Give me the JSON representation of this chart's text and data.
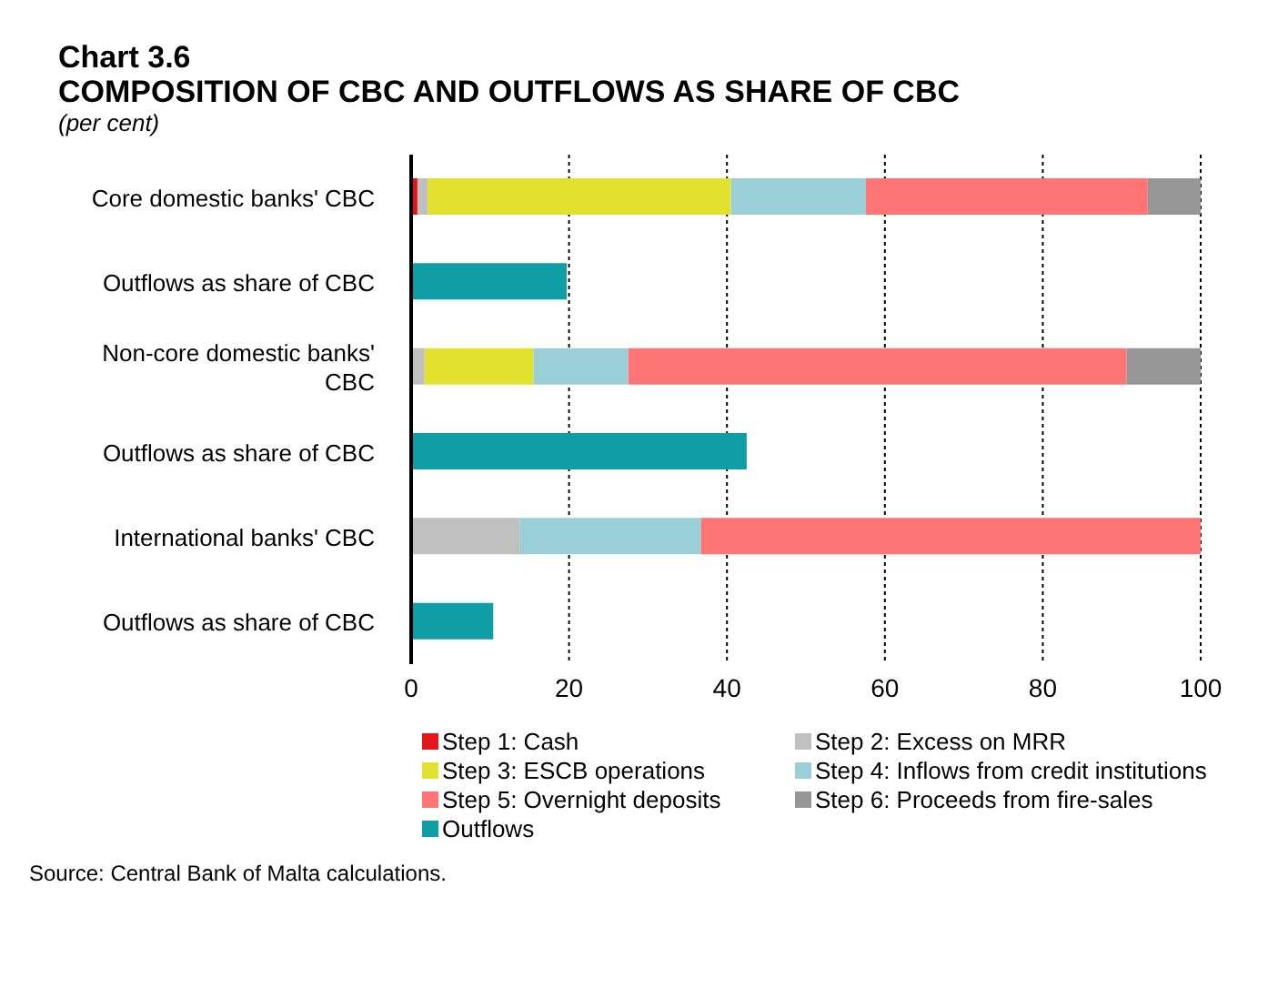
{
  "chart_data": {
    "type": "bar",
    "orientation": "horizontal",
    "stacked": true,
    "title": "Chart 3.6\nCOMPOSITION OF CBC AND OUTFLOWS AS SHARE OF CBC",
    "subtitle": "(per cent)",
    "categories": [
      "Core domestic banks' CBC",
      "Outflows as share of CBC",
      "Non-core domestic banks' CBC",
      "Outflows as share of CBC",
      "International banks' CBC",
      "Outflows as share of CBC"
    ],
    "series": [
      {
        "name": "Step 1: Cash",
        "color": "#e3161c",
        "values": [
          0.8,
          null,
          null,
          null,
          null,
          null
        ]
      },
      {
        "name": "Step 2: Excess on MRR",
        "color": "#c0c0c0",
        "values": [
          1.3,
          null,
          1.7,
          null,
          13.8,
          null
        ]
      },
      {
        "name": "Step 3: ESCB operations",
        "color": "#e2e22e",
        "values": [
          38.4,
          null,
          13.8,
          null,
          null,
          null
        ]
      },
      {
        "name": "Step 4: Inflows from credit institutions",
        "color": "#9bcfd8",
        "values": [
          17.1,
          null,
          12.0,
          null,
          22.9,
          null
        ]
      },
      {
        "name": "Step 5: Overnight deposits",
        "color": "#ff7575",
        "values": [
          35.7,
          null,
          63.1,
          null,
          63.3,
          null
        ]
      },
      {
        "name": "Step 6: Proceeds from fire-sales",
        "color": "#969696",
        "values": [
          6.7,
          null,
          9.4,
          null,
          null,
          null
        ]
      },
      {
        "name": "Outflows",
        "color": "#0f9ea5",
        "values": [
          null,
          19.7,
          null,
          42.5,
          null,
          10.4
        ]
      }
    ],
    "xlim": [
      0,
      100
    ],
    "xticks": [
      0,
      20,
      40,
      60,
      80,
      100
    ],
    "grid": "x",
    "legend": "bottom",
    "annotations": [
      "Source: Central Bank of Malta calculations."
    ]
  }
}
